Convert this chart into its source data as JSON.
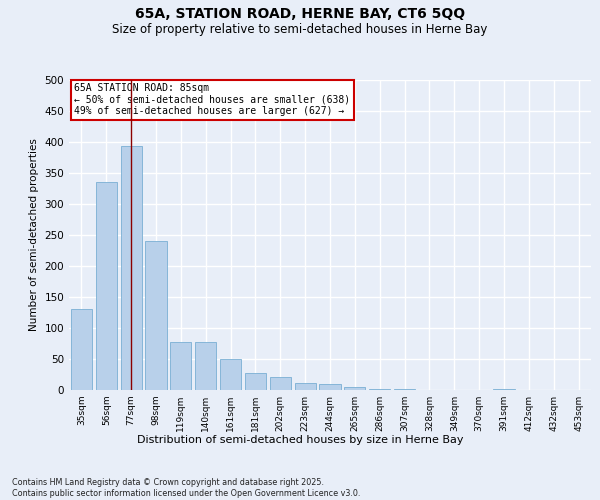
{
  "title_line1": "65A, STATION ROAD, HERNE BAY, CT6 5QQ",
  "title_line2": "Size of property relative to semi-detached houses in Herne Bay",
  "xlabel": "Distribution of semi-detached houses by size in Herne Bay",
  "ylabel": "Number of semi-detached properties",
  "categories": [
    "35sqm",
    "56sqm",
    "77sqm",
    "98sqm",
    "119sqm",
    "140sqm",
    "161sqm",
    "181sqm",
    "202sqm",
    "223sqm",
    "244sqm",
    "265sqm",
    "286sqm",
    "307sqm",
    "328sqm",
    "349sqm",
    "370sqm",
    "391sqm",
    "412sqm",
    "432sqm",
    "453sqm"
  ],
  "values": [
    130,
    335,
    393,
    240,
    77,
    77,
    50,
    28,
    21,
    12,
    10,
    5,
    1,
    1,
    0,
    0,
    0,
    1,
    0,
    0,
    0
  ],
  "bar_color": "#b8d0ea",
  "bar_edge_color": "#7aafd4",
  "vline_x": 2,
  "vline_color": "#8b0000",
  "annotation_title": "65A STATION ROAD: 85sqm",
  "annotation_line2": "← 50% of semi-detached houses are smaller (638)",
  "annotation_line3": "49% of semi-detached houses are larger (627) →",
  "annotation_box_color": "#ffffff",
  "annotation_box_edge": "#cc0000",
  "ylim": [
    0,
    500
  ],
  "yticks": [
    0,
    50,
    100,
    150,
    200,
    250,
    300,
    350,
    400,
    450,
    500
  ],
  "footer_line1": "Contains HM Land Registry data © Crown copyright and database right 2025.",
  "footer_line2": "Contains public sector information licensed under the Open Government Licence v3.0.",
  "bg_color": "#e8eef8",
  "grid_color": "#ffffff"
}
